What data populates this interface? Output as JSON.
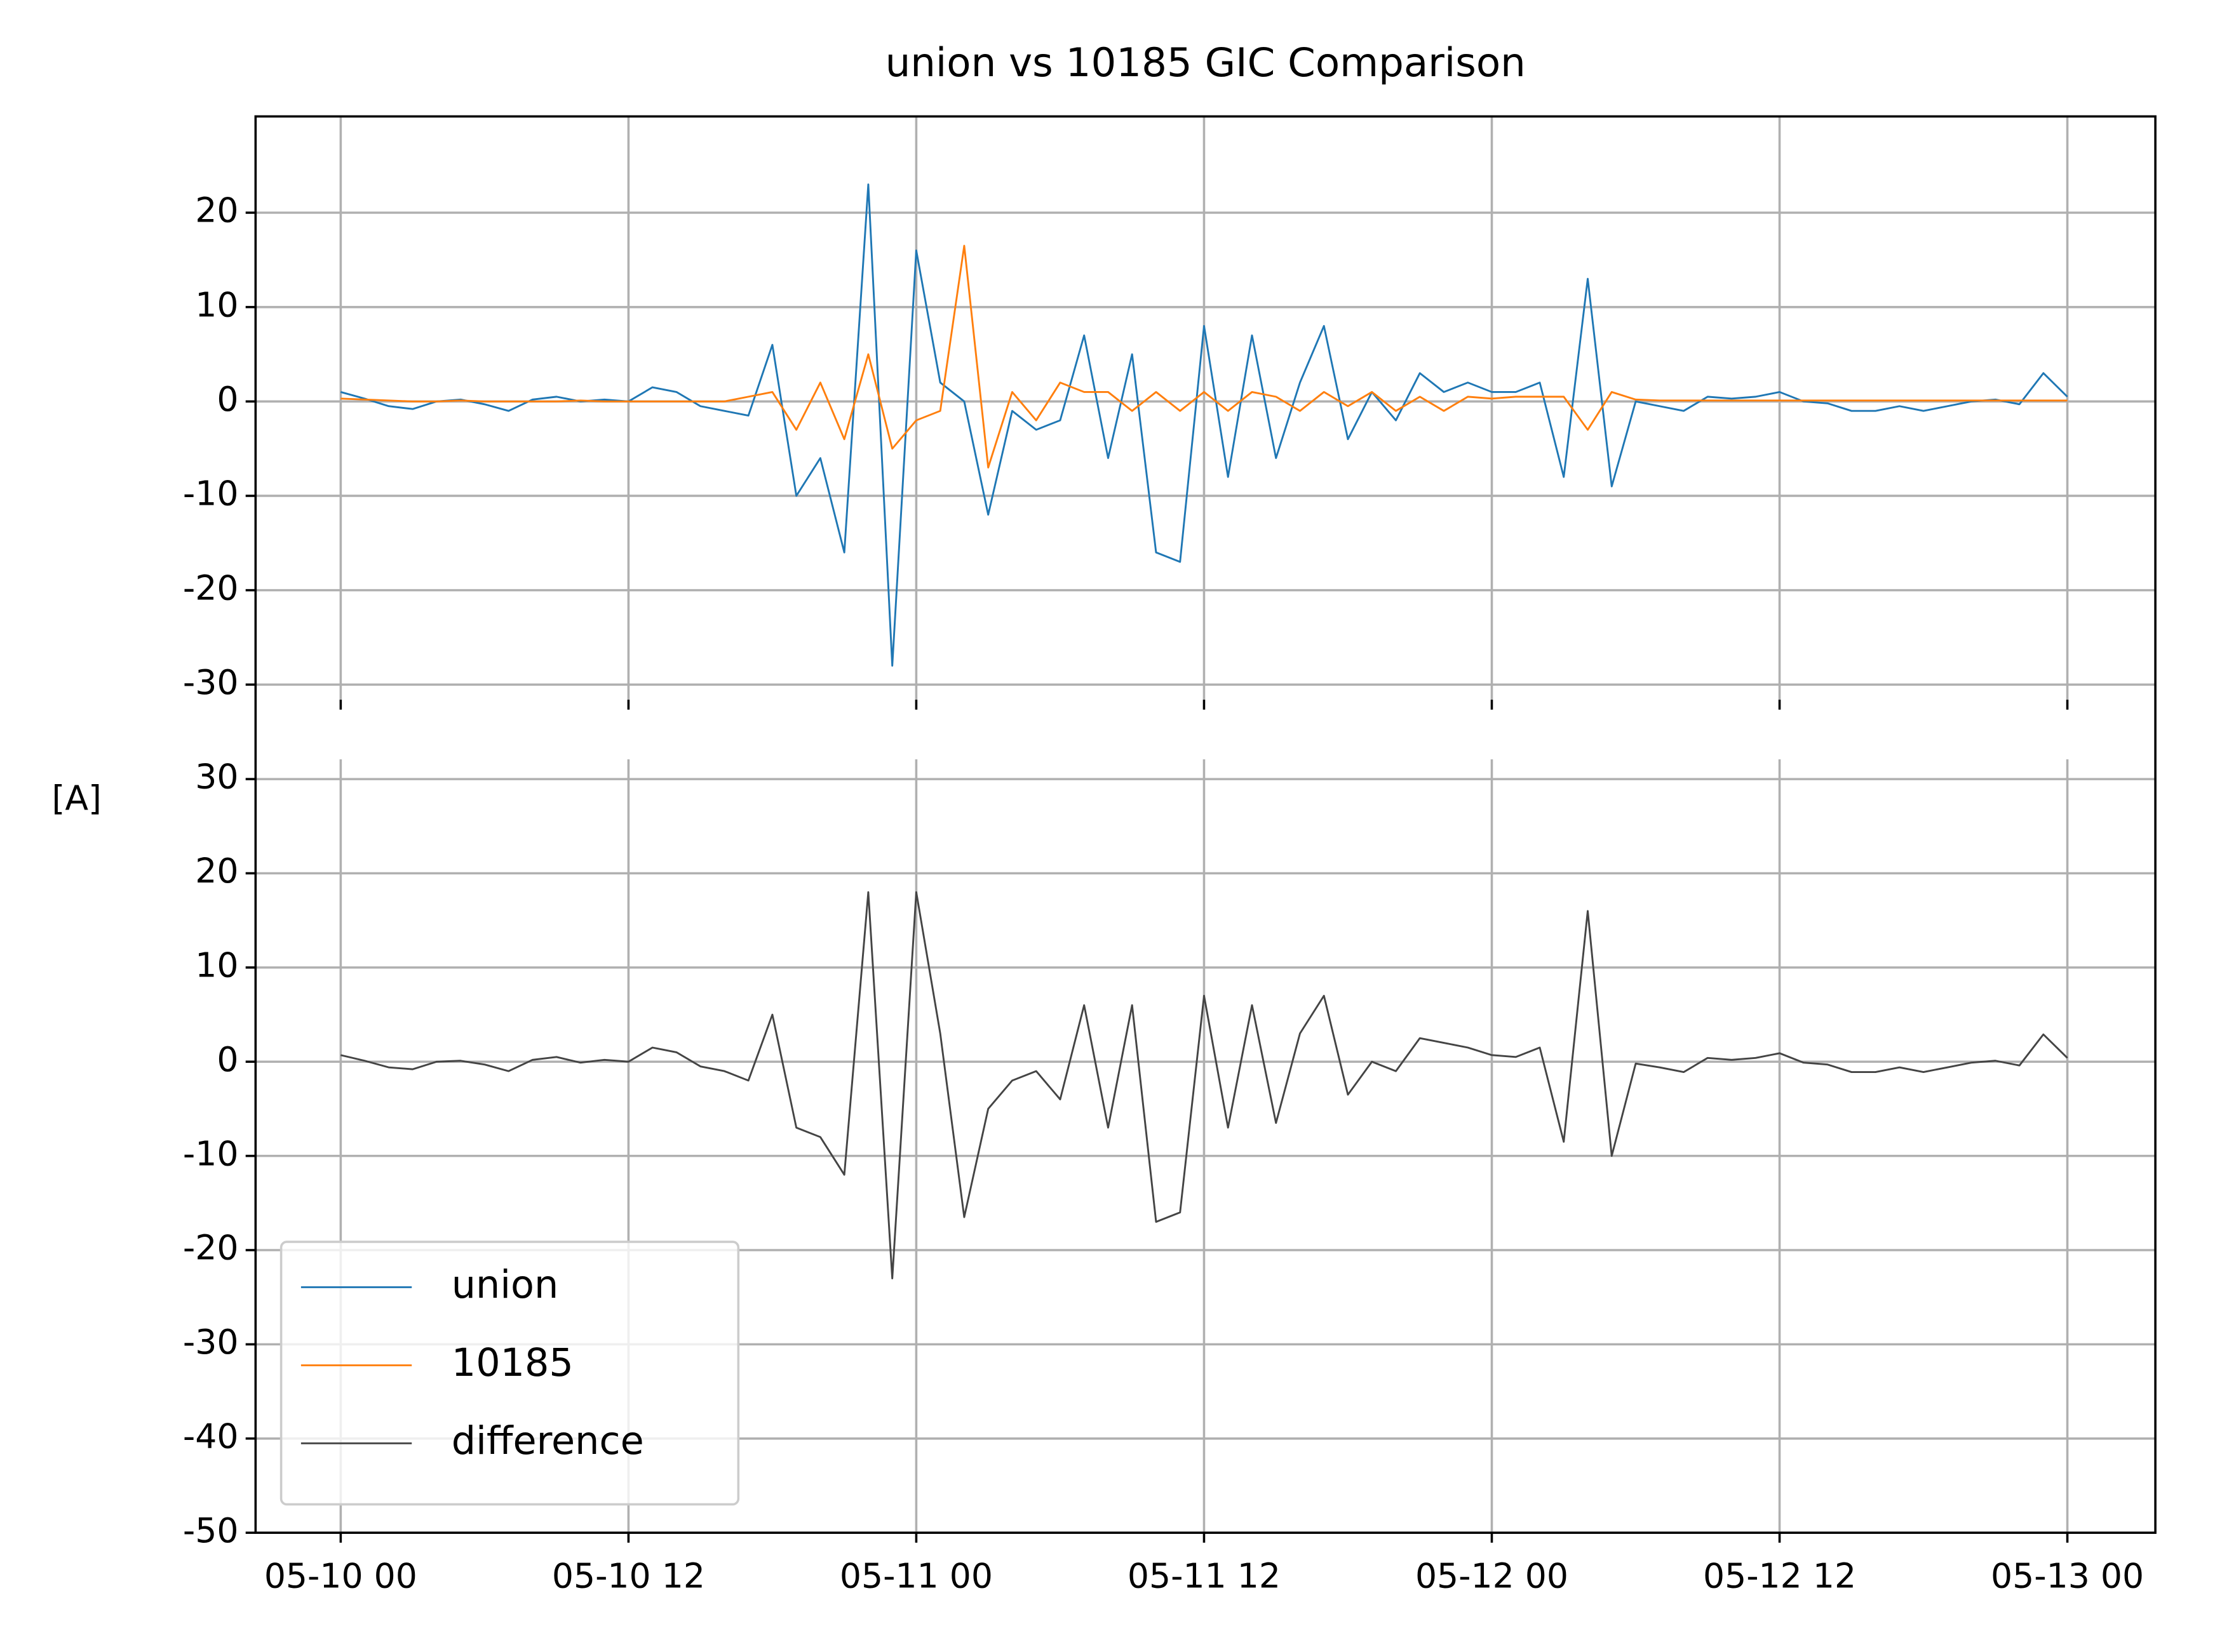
{
  "chart_data": [
    {
      "type": "line",
      "title": "union vs 10185 GIC Comparison",
      "x": [
        0,
        1,
        2,
        3,
        4,
        5,
        6,
        7,
        8,
        9,
        10,
        11,
        12,
        13,
        14,
        15,
        16,
        17,
        18,
        19,
        20,
        21,
        22,
        23,
        24,
        25,
        26,
        27,
        28,
        29,
        30,
        31,
        32,
        33,
        34,
        35,
        36,
        37,
        38,
        39,
        40,
        41,
        42,
        43,
        44,
        45,
        46,
        47,
        48,
        49,
        50,
        51,
        52,
        53,
        54,
        55,
        56,
        57,
        58,
        59,
        60,
        61,
        62,
        63,
        64,
        65,
        66,
        67,
        68,
        69,
        70,
        71,
        72
      ],
      "series": [
        {
          "name": "union",
          "color": "#1f77b4",
          "values": [
            1,
            0.3,
            -0.5,
            -0.8,
            0,
            0.2,
            -0.3,
            -1,
            0.2,
            0.5,
            0,
            0.2,
            0,
            1.5,
            1,
            -0.5,
            -1,
            -1.5,
            6,
            -10,
            -6,
            -16,
            23,
            -28,
            16,
            2,
            0,
            -12,
            -1,
            -3,
            -2,
            7,
            -6,
            5,
            -16,
            -17,
            8,
            -8,
            7,
            -6,
            2,
            8,
            -4,
            1,
            -2,
            3,
            1,
            2,
            1,
            1,
            2,
            -8,
            13,
            -9,
            0,
            -0.5,
            -1,
            0.5,
            0.3,
            0.5,
            1,
            0,
            -0.2,
            -1,
            -1,
            -0.5,
            -1,
            -0.5,
            0,
            0.2,
            -0.3,
            3,
            0.5
          ]
        },
        {
          "name": "10185",
          "color": "#ff7f0e",
          "values": [
            0.3,
            0.2,
            0.1,
            0,
            0,
            0.1,
            0,
            0,
            0,
            0,
            0.1,
            0,
            0,
            0,
            0,
            0,
            0,
            0.5,
            1,
            -3,
            2,
            -4,
            5,
            -5,
            -2,
            -1,
            16.5,
            -7,
            1,
            -2,
            2,
            1,
            1,
            -1,
            1,
            -1,
            1,
            -1,
            1,
            0.5,
            -1,
            1,
            -0.5,
            1,
            -1,
            0.5,
            -1,
            0.5,
            0.3,
            0.5,
            0.5,
            0.5,
            -3,
            1,
            0.2,
            0.1,
            0.1,
            0.1,
            0.1,
            0.1,
            0.1,
            0.1,
            0.1,
            0.1,
            0.1,
            0.1,
            0.1,
            0.1,
            0.1,
            0.1,
            0.1,
            0.1,
            0.1
          ]
        }
      ],
      "xlim": [
        -3.55,
        75.67
      ],
      "xticks": [
        0,
        12,
        24,
        36,
        48,
        60,
        72
      ],
      "ylim": [
        -31.6,
        30.2
      ],
      "yticks": [
        -30,
        -20,
        -10,
        0,
        10,
        20
      ],
      "grid": true
    },
    {
      "type": "line",
      "ylabel": "[A]",
      "x": [
        0,
        1,
        2,
        3,
        4,
        5,
        6,
        7,
        8,
        9,
        10,
        11,
        12,
        13,
        14,
        15,
        16,
        17,
        18,
        19,
        20,
        21,
        22,
        23,
        24,
        25,
        26,
        27,
        28,
        29,
        30,
        31,
        32,
        33,
        34,
        35,
        36,
        37,
        38,
        39,
        40,
        41,
        42,
        43,
        44,
        45,
        46,
        47,
        48,
        49,
        50,
        51,
        52,
        53,
        54,
        55,
        56,
        57,
        58,
        59,
        60,
        61,
        62,
        63,
        64,
        65,
        66,
        67,
        68,
        69,
        70,
        71,
        72
      ],
      "series": [
        {
          "name": "difference",
          "color": "#444444",
          "values": [
            0.7,
            0.1,
            -0.6,
            -0.8,
            0,
            0.1,
            -0.3,
            -1,
            0.2,
            0.5,
            -0.1,
            0.2,
            0,
            1.5,
            1,
            -0.5,
            -1,
            -2,
            5,
            -7,
            -8,
            -12,
            18,
            -23,
            18,
            3,
            -16.5,
            -5,
            -2,
            -1,
            -4,
            6,
            -7,
            6,
            -17,
            -16,
            7,
            -7,
            6,
            -6.5,
            3,
            7,
            -3.5,
            0,
            -1,
            2.5,
            2,
            1.5,
            0.7,
            0.5,
            1.5,
            -8.5,
            16,
            -10,
            -0.2,
            -0.6,
            -1.1,
            0.4,
            0.2,
            0.4,
            0.9,
            -0.1,
            -0.3,
            -1.1,
            -1.1,
            -0.6,
            -1.1,
            -0.6,
            -0.1,
            0.1,
            -0.4,
            2.9,
            0.4
          ]
        }
      ],
      "xlim": [
        -3.55,
        75.67
      ],
      "xticks": [
        {
          "value": 0,
          "label": "05-10 00"
        },
        {
          "value": 12,
          "label": "05-10 12"
        },
        {
          "value": 24,
          "label": "05-11 00"
        },
        {
          "value": 36,
          "label": "05-11 12"
        },
        {
          "value": 48,
          "label": "05-12 00"
        },
        {
          "value": 60,
          "label": "05-12 12"
        },
        {
          "value": 72,
          "label": "05-13 00"
        }
      ],
      "ylim": [
        -50,
        32.1
      ],
      "yticks": [
        -50,
        -40,
        -30,
        -20,
        -10,
        0,
        10,
        20,
        30
      ],
      "grid": true,
      "legend": "lower left"
    }
  ]
}
